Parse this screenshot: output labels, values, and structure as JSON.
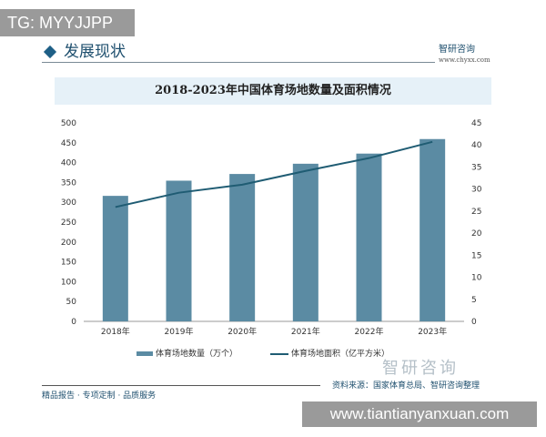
{
  "watermark_top": "TG: MYYJJPP",
  "watermark_bottom": "www.tiantianyanxuan.com",
  "header": {
    "section": "发展现状",
    "logo": "智研咨询",
    "url": "www.chyxx.com"
  },
  "source": "资料来源：国家体育总局、智研咨询整理",
  "brand": "智研咨询",
  "footer": "精品报告 · 专项定制 · 品质服务",
  "colors": {
    "bar": "#5b8ba3",
    "line": "#1f5c73"
  },
  "chart_data": {
    "type": "bar+line",
    "title": "2018-2023年中国体育场地数量及面积情况",
    "categories": [
      "2018年",
      "2019年",
      "2020年",
      "2021年",
      "2022年",
      "2023年"
    ],
    "series": [
      {
        "name": "体育场地数量（万个）",
        "type": "bar",
        "axis": "left",
        "values": [
          316.2,
          354.44,
          371.34,
          397.14,
          422.68,
          459.27
        ]
      },
      {
        "name": "体育场地面积（亿平方米）",
        "type": "line",
        "axis": "right",
        "values": [
          25.92,
          29.17,
          30.99,
          34.11,
          37.02,
          40.71
        ]
      }
    ],
    "ylim_left": [
      0,
      500
    ],
    "yticks_left": [
      0,
      50,
      100,
      150,
      200,
      250,
      300,
      350,
      400,
      450,
      500
    ],
    "ylim_right": [
      0,
      45
    ],
    "yticks_right": [
      0,
      5,
      10,
      15,
      20,
      25,
      30,
      35,
      40,
      45
    ],
    "legend": "bottom",
    "grid": false
  }
}
